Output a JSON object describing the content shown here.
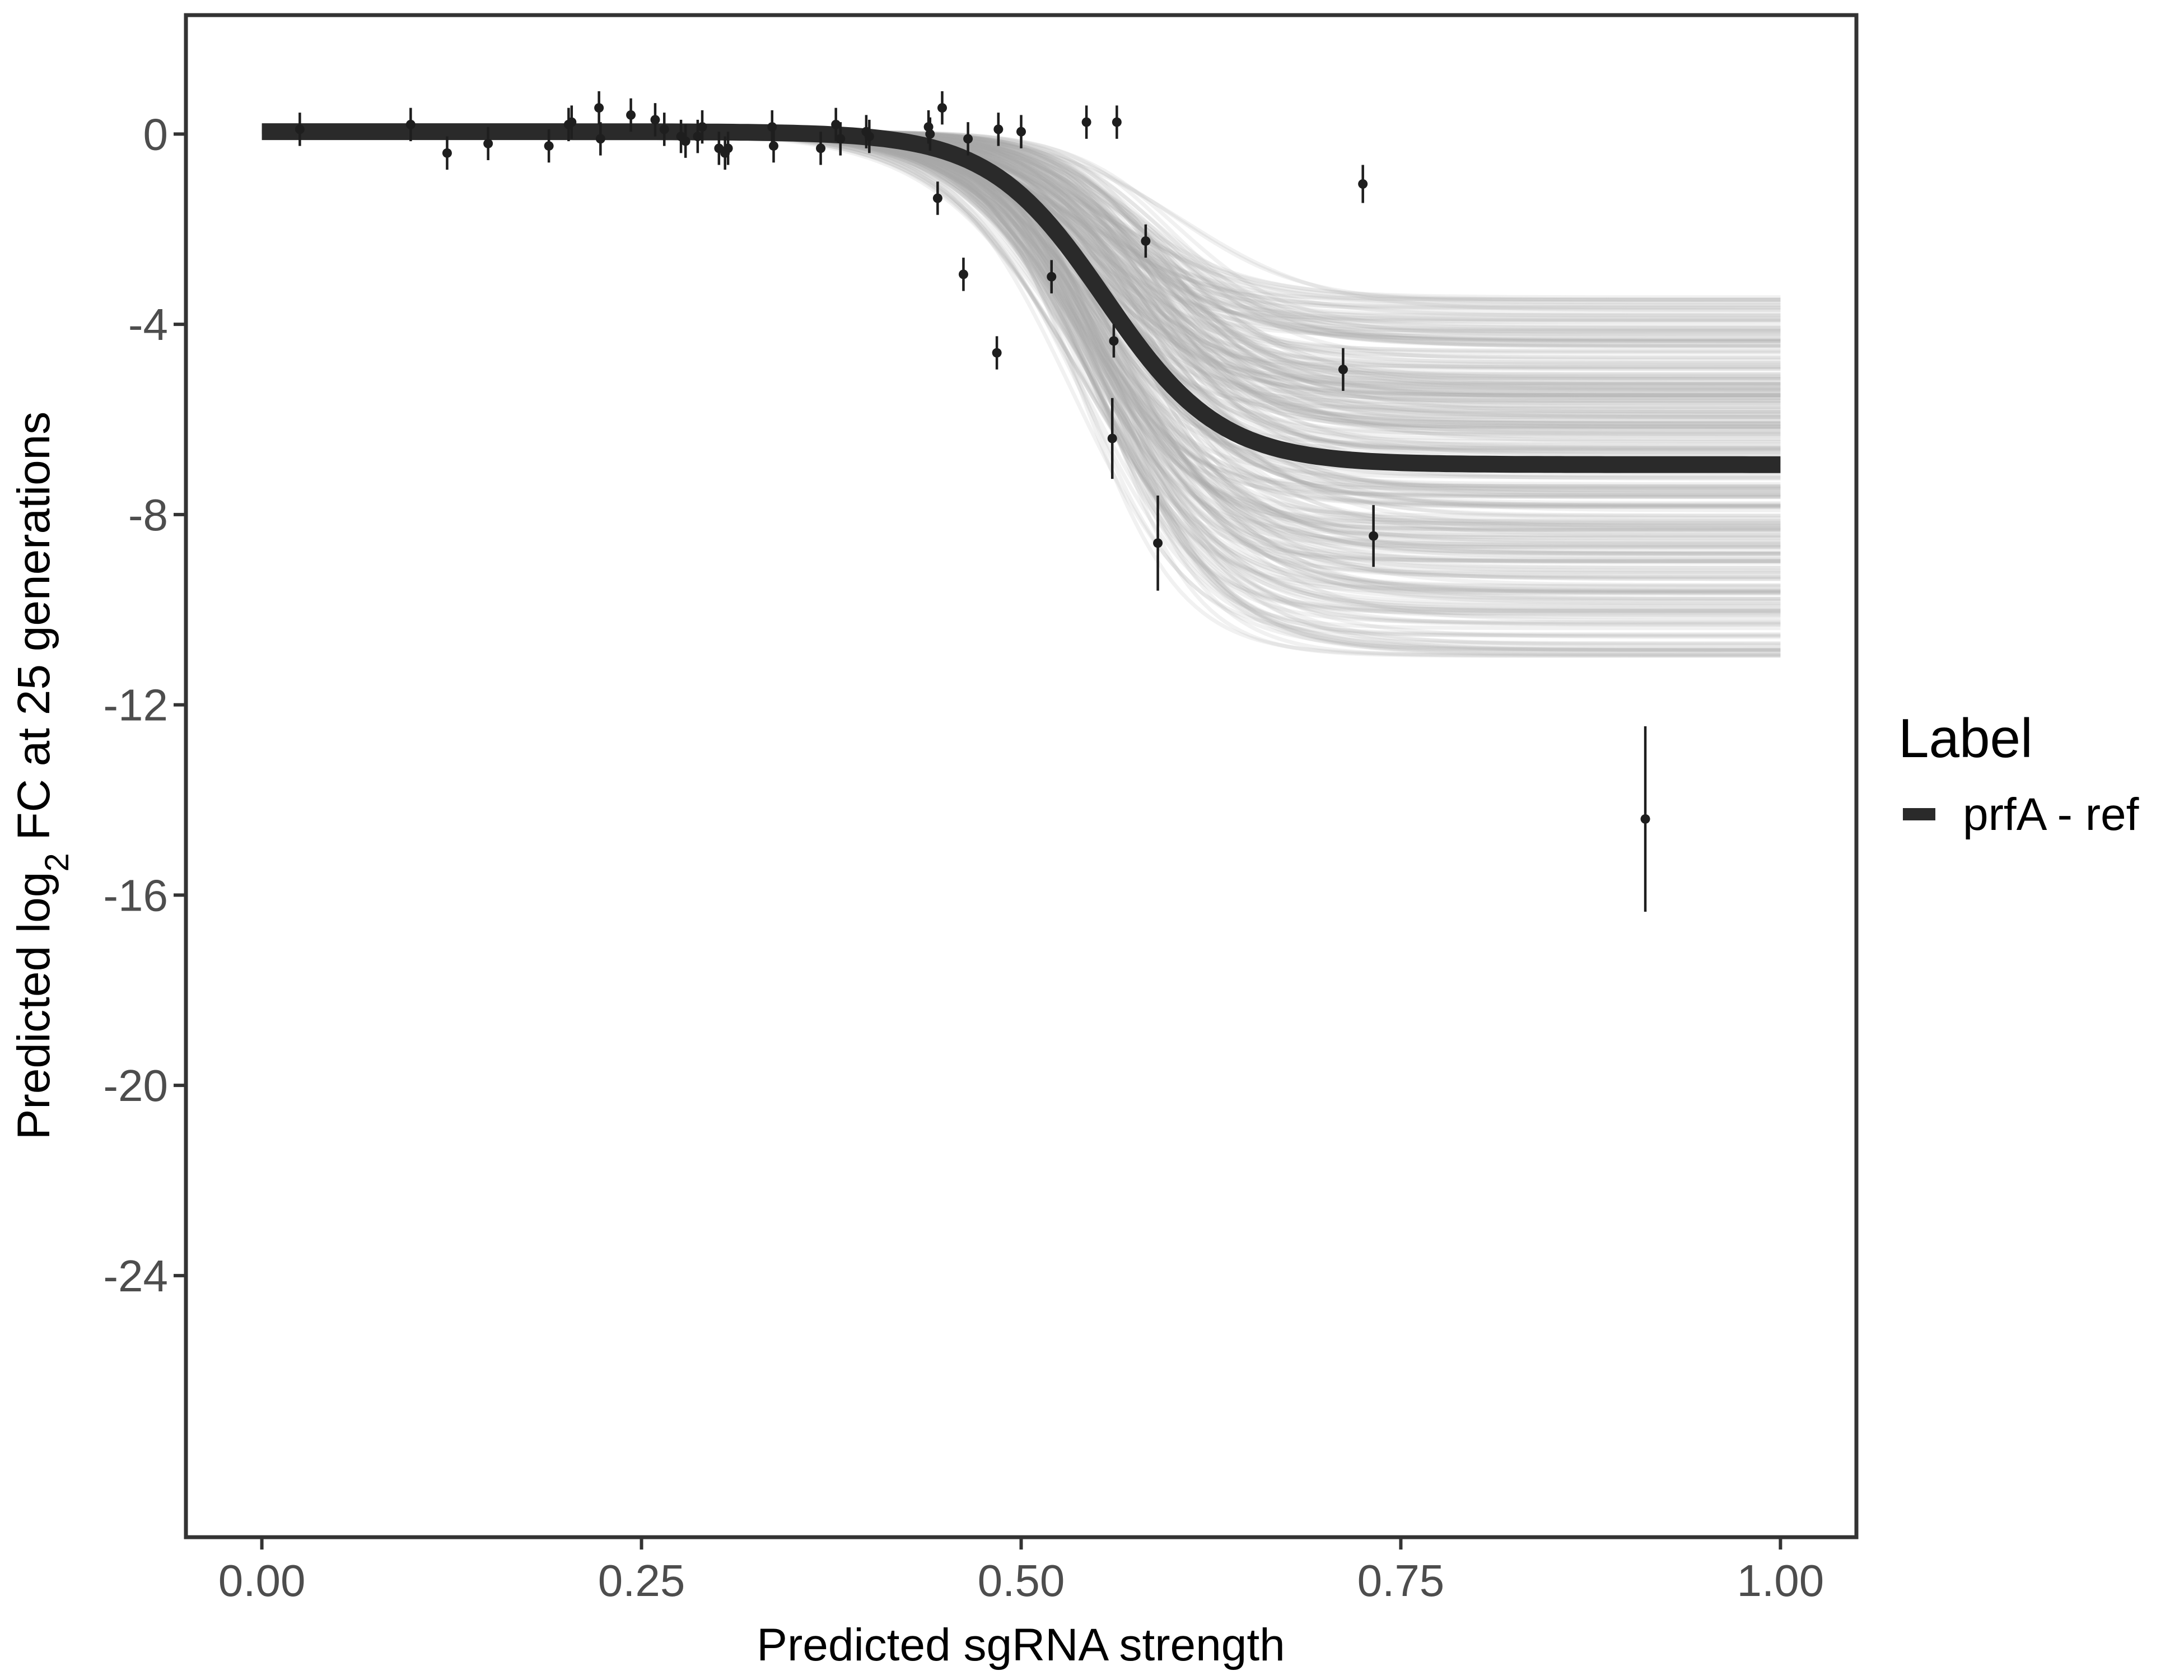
{
  "chart_data": {
    "type": "line",
    "title": "",
    "xlabel": "Predicted sgRNA strength",
    "ylabel": {
      "before": "Predicted  log",
      "subscript": "2",
      "after": " FC at 25 generations"
    },
    "xlim": [
      -0.05,
      1.05
    ],
    "ylim": [
      -29.5,
      2.5
    ],
    "x_ticks": [
      0,
      0.25,
      0.5,
      0.75,
      1
    ],
    "x_tick_labels": [
      "0.00",
      "0.25",
      "0.50",
      "0.75",
      "1.00"
    ],
    "y_ticks": [
      0,
      -4,
      -8,
      -12,
      -16,
      -20,
      -24
    ],
    "y_tick_labels": [
      "0",
      "-4",
      "-8",
      "-12",
      "-16",
      "-20",
      "-24"
    ],
    "grid": false,
    "legend": {
      "title": "Label",
      "placement": "right",
      "entries": [
        {
          "label": "prfA - ref",
          "color": "#2a2a2a"
        }
      ]
    },
    "fit_line": {
      "name": "prfA - ref",
      "color": "#2a2a2a",
      "model": "logistic",
      "upper": 0.05,
      "lower": -6.95,
      "midpoint": 0.555,
      "scale": 0.038
    },
    "posterior_draws": {
      "color": "#a6a6a6",
      "count": 300,
      "lower_range": [
        -11.0,
        -3.4
      ],
      "midpoint_range": [
        0.5,
        0.61
      ],
      "scale_range": [
        0.03,
        0.05
      ]
    },
    "points": [
      {
        "x": 0.025,
        "y": 0.1,
        "err": 0.35
      },
      {
        "x": 0.098,
        "y": 0.2,
        "err": 0.35
      },
      {
        "x": 0.122,
        "y": -0.4,
        "err": 0.35
      },
      {
        "x": 0.149,
        "y": -0.2,
        "err": 0.35
      },
      {
        "x": 0.189,
        "y": -0.25,
        "err": 0.35
      },
      {
        "x": 0.202,
        "y": 0.2,
        "err": 0.35
      },
      {
        "x": 0.204,
        "y": 0.25,
        "err": 0.35
      },
      {
        "x": 0.222,
        "y": 0.55,
        "err": 0.35
      },
      {
        "x": 0.223,
        "y": -0.1,
        "err": 0.35
      },
      {
        "x": 0.243,
        "y": 0.4,
        "err": 0.35
      },
      {
        "x": 0.259,
        "y": 0.3,
        "err": 0.35
      },
      {
        "x": 0.265,
        "y": 0.1,
        "err": 0.35
      },
      {
        "x": 0.276,
        "y": -0.05,
        "err": 0.35
      },
      {
        "x": 0.279,
        "y": -0.15,
        "err": 0.35
      },
      {
        "x": 0.287,
        "y": -0.05,
        "err": 0.35
      },
      {
        "x": 0.29,
        "y": 0.15,
        "err": 0.35
      },
      {
        "x": 0.301,
        "y": -0.3,
        "err": 0.35
      },
      {
        "x": 0.305,
        "y": -0.4,
        "err": 0.35
      },
      {
        "x": 0.307,
        "y": -0.3,
        "err": 0.35
      },
      {
        "x": 0.336,
        "y": 0.15,
        "err": 0.35
      },
      {
        "x": 0.337,
        "y": -0.25,
        "err": 0.35
      },
      {
        "x": 0.368,
        "y": -0.3,
        "err": 0.35
      },
      {
        "x": 0.378,
        "y": 0.2,
        "err": 0.35
      },
      {
        "x": 0.381,
        "y": -0.1,
        "err": 0.35
      },
      {
        "x": 0.398,
        "y": 0.05,
        "err": 0.35
      },
      {
        "x": 0.4,
        "y": -0.05,
        "err": 0.35
      },
      {
        "x": 0.439,
        "y": 0.15,
        "err": 0.35
      },
      {
        "x": 0.44,
        "y": 0.0,
        "err": 0.35
      },
      {
        "x": 0.445,
        "y": -1.35,
        "err": 0.35
      },
      {
        "x": 0.448,
        "y": 0.55,
        "err": 0.35
      },
      {
        "x": 0.462,
        "y": -2.95,
        "err": 0.35
      },
      {
        "x": 0.465,
        "y": -0.1,
        "err": 0.35
      },
      {
        "x": 0.484,
        "y": -4.6,
        "err": 0.35
      },
      {
        "x": 0.485,
        "y": 0.1,
        "err": 0.35
      },
      {
        "x": 0.5,
        "y": 0.05,
        "err": 0.35
      },
      {
        "x": 0.52,
        "y": -3.0,
        "err": 0.35
      },
      {
        "x": 0.543,
        "y": 0.25,
        "err": 0.35
      },
      {
        "x": 0.56,
        "y": -6.4,
        "err": 0.85
      },
      {
        "x": 0.561,
        "y": -4.35,
        "err": 0.35
      },
      {
        "x": 0.563,
        "y": 0.25,
        "err": 0.35
      },
      {
        "x": 0.582,
        "y": -2.25,
        "err": 0.35
      },
      {
        "x": 0.59,
        "y": -8.6,
        "err": 1.0
      },
      {
        "x": 0.712,
        "y": -4.95,
        "err": 0.45
      },
      {
        "x": 0.725,
        "y": -1.05,
        "err": 0.4
      },
      {
        "x": 0.732,
        "y": -8.45,
        "err": 0.65
      },
      {
        "x": 0.911,
        "y": -14.4,
        "err": 1.95
      }
    ]
  }
}
